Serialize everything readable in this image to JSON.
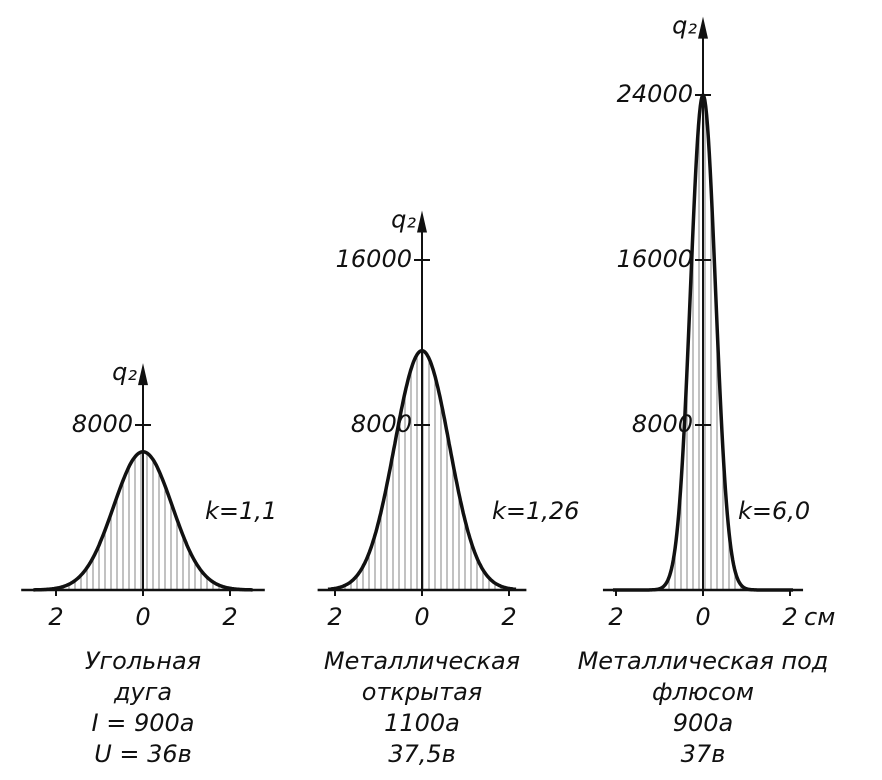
{
  "chart_data": [
    {
      "type": "area",
      "ylabel": "q₂",
      "peak": 6700,
      "k": {
        "value": 1.1,
        "label": "k=1,1"
      },
      "xlim": [
        -2.8,
        2.8
      ],
      "ylim": [
        0,
        11000
      ],
      "yticks": [
        8000
      ],
      "xticks": [
        {
          "value": -2,
          "label": "2"
        },
        0,
        2
      ],
      "caption": [
        "Угольная",
        "дуга",
        "I = 900а",
        "U = 36в"
      ]
    },
    {
      "type": "area",
      "ylabel": "q₂",
      "peak": 11600,
      "k": {
        "value": 1.26,
        "label": "k=1,26"
      },
      "xlim": [
        -2.4,
        2.4
      ],
      "ylim": [
        0,
        18400
      ],
      "yticks": [
        8000,
        16000
      ],
      "xticks": [
        {
          "value": -2,
          "label": "2"
        },
        0,
        2
      ],
      "caption": [
        "Металлическая",
        "открытая",
        "1100а",
        "37,5в"
      ]
    },
    {
      "type": "area",
      "ylabel": "q₂",
      "peak": 24000,
      "k": {
        "value": 6.0,
        "label": "k=6,0"
      },
      "xlim": [
        -2.3,
        2.3
      ],
      "ylim": [
        0,
        27800
      ],
      "yticks": [
        8000,
        16000,
        24000
      ],
      "xticks": [
        {
          "value": -2,
          "label": "2"
        },
        0,
        2
      ],
      "xlabel": "см",
      "caption": [
        "Металлическая под",
        "флюсом",
        "900а",
        "37в"
      ]
    }
  ]
}
